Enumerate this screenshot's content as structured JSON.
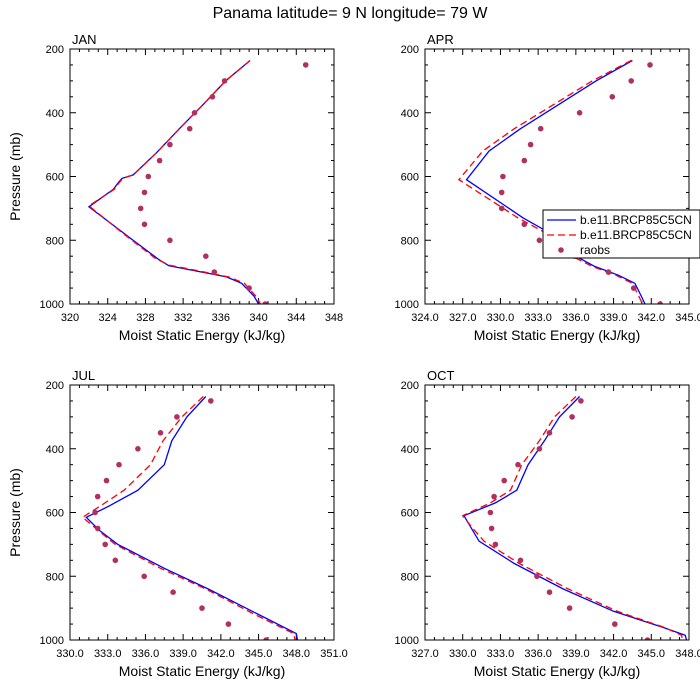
{
  "figure": {
    "title": "Panama  latitude= 9 N longitude= 79 W"
  },
  "colors": {
    "model1": "#0000ff",
    "model2": "#ff0000",
    "raobs": "#b03060"
  },
  "legend": {
    "entries": [
      "b.e11.BRCP85C5CN",
      "b.e11.BRCP85C5CN",
      "raobs"
    ],
    "panel": "APR"
  },
  "chart_data": [
    {
      "type": "line",
      "panel_title": "JAN",
      "xlabel": "Moist Static Energy (kJ/kg)",
      "ylabel": "Pressure (mb)",
      "xlim": [
        320,
        348
      ],
      "ylim": [
        1000,
        200
      ],
      "xticks": [
        "320",
        "324",
        "328",
        "332",
        "336",
        "340",
        "344",
        "348"
      ],
      "yticks": [
        "200",
        "400",
        "600",
        "800",
        "1000"
      ],
      "series": [
        {
          "points": [
            [
              339.1,
              236
            ],
            [
              336.5,
              300
            ],
            [
              334.1,
              375
            ],
            [
              331.6,
              450
            ],
            [
              329.2,
              525
            ],
            [
              326.7,
              595
            ],
            [
              325.5,
              606
            ],
            [
              325.1,
              620
            ],
            [
              324.6,
              640
            ],
            [
              322.0,
              695
            ],
            [
              325.8,
              780
            ],
            [
              329.4,
              860
            ],
            [
              330.5,
              880
            ],
            [
              334.0,
              900
            ],
            [
              336.6,
              915
            ],
            [
              338.2,
              935
            ],
            [
              339.5,
              975
            ],
            [
              340.0,
              1000
            ]
          ]
        },
        {
          "points": [
            [
              339.1,
              236
            ],
            [
              336.5,
              300
            ],
            [
              334.1,
              375
            ],
            [
              331.6,
              450
            ],
            [
              329.2,
              525
            ],
            [
              326.7,
              595
            ],
            [
              325.6,
              606
            ],
            [
              325.2,
              620
            ],
            [
              324.7,
              640
            ],
            [
              322.0,
              692
            ],
            [
              325.6,
              778
            ],
            [
              329.1,
              858
            ],
            [
              330.5,
              878
            ],
            [
              334.0,
              898
            ],
            [
              336.8,
              915
            ],
            [
              338.5,
              935
            ],
            [
              339.7,
              975
            ],
            [
              340.2,
              1000
            ]
          ]
        },
        {
          "points": [
            [
              345.0,
              250
            ],
            [
              336.4,
              300
            ],
            [
              335.1,
              350
            ],
            [
              333.2,
              400
            ],
            [
              332.7,
              450
            ],
            [
              330.6,
              500
            ],
            [
              329.5,
              550
            ],
            [
              328.3,
              600
            ],
            [
              327.9,
              650
            ],
            [
              327.5,
              700
            ],
            [
              327.9,
              750
            ],
            [
              330.6,
              800
            ],
            [
              334.4,
              850
            ],
            [
              335.3,
              900
            ],
            [
              339.0,
              950
            ],
            [
              340.7,
              1000
            ]
          ]
        }
      ]
    },
    {
      "type": "line",
      "panel_title": "APR",
      "xlabel": "Moist Static Energy (kJ/kg)",
      "ylabel": "",
      "xlim": [
        324,
        345
      ],
      "ylim": [
        1000,
        200
      ],
      "xticks": [
        "324.0",
        "327.0",
        "330.0",
        "333.0",
        "336.0",
        "339.0",
        "342.0",
        "345.0"
      ],
      "yticks": [
        "200",
        "400",
        "600",
        "800",
        "1000"
      ],
      "series": [
        {
          "points": [
            [
              340.5,
              236
            ],
            [
              337.6,
              300
            ],
            [
              334.6,
              375
            ],
            [
              331.6,
              450
            ],
            [
              329.1,
              520
            ],
            [
              327.3,
              610
            ],
            [
              331.8,
              730
            ],
            [
              334.5,
              790
            ],
            [
              336.0,
              850
            ],
            [
              337.5,
              882
            ],
            [
              339.4,
              910
            ],
            [
              340.7,
              935
            ],
            [
              341.2,
              975
            ],
            [
              341.5,
              1000
            ]
          ]
        },
        {
          "points": [
            [
              340.4,
              236
            ],
            [
              337.3,
              300
            ],
            [
              334.2,
              375
            ],
            [
              331.1,
              450
            ],
            [
              328.6,
              520
            ],
            [
              326.7,
              610
            ],
            [
              331.4,
              730
            ],
            [
              334.2,
              790
            ],
            [
              335.7,
              850
            ],
            [
              337.3,
              882
            ],
            [
              339.2,
              910
            ],
            [
              340.5,
              935
            ],
            [
              341.0,
              975
            ],
            [
              341.3,
              1000
            ]
          ]
        },
        {
          "points": [
            [
              341.9,
              250
            ],
            [
              340.4,
              300
            ],
            [
              338.9,
              350
            ],
            [
              336.3,
              400
            ],
            [
              333.2,
              450
            ],
            [
              332.4,
              500
            ],
            [
              331.9,
              550
            ],
            [
              330.2,
              600
            ],
            [
              330.1,
              650
            ],
            [
              330.1,
              700
            ],
            [
              331.9,
              750
            ],
            [
              333.1,
              800
            ],
            [
              335.9,
              850
            ],
            [
              338.6,
              900
            ],
            [
              340.6,
              950
            ],
            [
              342.7,
              1000
            ]
          ]
        }
      ]
    },
    {
      "type": "line",
      "panel_title": "JUL",
      "xlabel": "Moist Static Energy (kJ/kg)",
      "ylabel": "Pressure (mb)",
      "xlim": [
        330,
        351
      ],
      "ylim": [
        1000,
        200
      ],
      "xticks": [
        "330.0",
        "333.0",
        "336.0",
        "339.0",
        "342.0",
        "345.0",
        "348.0",
        "351.0"
      ],
      "yticks": [
        "200",
        "400",
        "600",
        "800",
        "1000"
      ],
      "series": [
        {
          "points": [
            [
              340.8,
              236
            ],
            [
              339.3,
              300
            ],
            [
              338.1,
              375
            ],
            [
              337.5,
              450
            ],
            [
              335.4,
              530
            ],
            [
              333.1,
              580
            ],
            [
              331.3,
              615
            ],
            [
              332.3,
              655
            ],
            [
              333.8,
              700
            ],
            [
              337.5,
              775
            ],
            [
              341.0,
              840
            ],
            [
              345.0,
              920
            ],
            [
              348.0,
              980
            ],
            [
              348.1,
              1000
            ]
          ]
        },
        {
          "points": [
            [
              340.6,
              236
            ],
            [
              338.9,
              300
            ],
            [
              337.4,
              375
            ],
            [
              336.4,
              450
            ],
            [
              334.3,
              530
            ],
            [
              332.4,
              580
            ],
            [
              331.0,
              615
            ],
            [
              332.2,
              655
            ],
            [
              333.6,
              700
            ],
            [
              337.2,
              775
            ],
            [
              340.8,
              840
            ],
            [
              344.7,
              920
            ],
            [
              347.8,
              980
            ],
            [
              347.9,
              1000
            ]
          ]
        },
        {
          "points": [
            [
              341.2,
              250
            ],
            [
              338.5,
              300
            ],
            [
              337.2,
              350
            ],
            [
              335.4,
              400
            ],
            [
              333.9,
              450
            ],
            [
              332.9,
              500
            ],
            [
              332.2,
              550
            ],
            [
              332.0,
              600
            ],
            [
              332.2,
              650
            ],
            [
              332.8,
              700
            ],
            [
              333.6,
              750
            ],
            [
              335.9,
              800
            ],
            [
              338.2,
              850
            ],
            [
              340.5,
              900
            ],
            [
              342.6,
              950
            ],
            [
              345.6,
              1000
            ]
          ]
        }
      ]
    },
    {
      "type": "line",
      "panel_title": "OCT",
      "xlabel": "Moist Static Energy (kJ/kg)",
      "ylabel": "",
      "xlim": [
        327,
        348
      ],
      "ylim": [
        1000,
        200
      ],
      "xticks": [
        "327.0",
        "330.0",
        "333.0",
        "336.0",
        "339.0",
        "342.0",
        "345.0",
        "348.0"
      ],
      "yticks": [
        "200",
        "400",
        "600",
        "800",
        "1000"
      ],
      "series": [
        {
          "points": [
            [
              339.3,
              236
            ],
            [
              337.7,
              300
            ],
            [
              336.5,
              375
            ],
            [
              335.2,
              450
            ],
            [
              334.3,
              530
            ],
            [
              332.6,
              570
            ],
            [
              330.1,
              610
            ],
            [
              330.7,
              650
            ],
            [
              331.3,
              690
            ],
            [
              334.1,
              760
            ],
            [
              338.0,
              840
            ],
            [
              342.0,
              910
            ],
            [
              345.9,
              960
            ],
            [
              347.7,
              985
            ],
            [
              347.8,
              1000
            ]
          ]
        },
        {
          "points": [
            [
              339.0,
              236
            ],
            [
              337.3,
              300
            ],
            [
              336.1,
              375
            ],
            [
              334.7,
              450
            ],
            [
              333.8,
              530
            ],
            [
              332.2,
              570
            ],
            [
              330.0,
              610
            ],
            [
              330.8,
              650
            ],
            [
              331.7,
              690
            ],
            [
              334.5,
              760
            ],
            [
              338.4,
              840
            ],
            [
              342.3,
              910
            ],
            [
              346.0,
              960
            ],
            [
              347.4,
              985
            ],
            [
              347.5,
              1000
            ]
          ]
        },
        {
          "points": [
            [
              339.4,
              250
            ],
            [
              338.7,
              300
            ],
            [
              336.9,
              350
            ],
            [
              336.1,
              400
            ],
            [
              334.4,
              450
            ],
            [
              333.3,
              500
            ],
            [
              332.5,
              550
            ],
            [
              332.2,
              600
            ],
            [
              332.3,
              650
            ],
            [
              332.6,
              700
            ],
            [
              334.6,
              750
            ],
            [
              335.9,
              800
            ],
            [
              336.9,
              850
            ],
            [
              338.5,
              900
            ],
            [
              342.1,
              950
            ],
            [
              344.7,
              1000
            ]
          ]
        }
      ]
    }
  ]
}
